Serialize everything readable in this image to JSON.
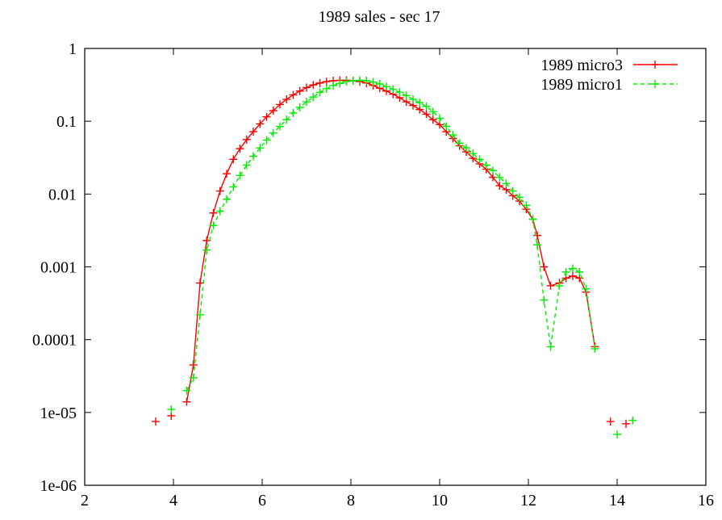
{
  "chart_data": {
    "type": "line",
    "title": "1989 sales - sec 17",
    "xlabel": "",
    "ylabel": "",
    "xlim": [
      2,
      16
    ],
    "ylim": [
      1e-06,
      1
    ],
    "yscale": "log",
    "grid": false,
    "legend_position": "top-right",
    "x_ticks": [
      2,
      4,
      6,
      8,
      10,
      12,
      14,
      16
    ],
    "x_tick_labels": [
      "2",
      "4",
      "6",
      "8",
      "10",
      "12",
      "14",
      "16"
    ],
    "y_ticks": [
      1,
      0.1,
      0.01,
      0.001,
      0.0001,
      1e-05,
      1e-06
    ],
    "y_tick_labels": [
      "1",
      "0.1",
      "0.01",
      "0.001",
      "0.0001",
      "1e-05",
      "1e-06"
    ],
    "series": [
      {
        "name": "1989 micro3",
        "color": "#ff0000",
        "line_style": "solid",
        "marker": "+",
        "x": [
          4.3,
          4.45,
          4.6,
          4.75,
          4.9,
          5.05,
          5.2,
          5.35,
          5.5,
          5.65,
          5.8,
          5.95,
          6.1,
          6.25,
          6.4,
          6.55,
          6.7,
          6.85,
          7.0,
          7.15,
          7.3,
          7.45,
          7.6,
          7.75,
          7.9,
          8.05,
          8.2,
          8.35,
          8.5,
          8.65,
          8.8,
          8.95,
          9.1,
          9.25,
          9.4,
          9.55,
          9.7,
          9.85,
          10.0,
          10.15,
          10.3,
          10.45,
          10.6,
          10.75,
          10.9,
          11.05,
          11.2,
          11.35,
          11.5,
          11.65,
          11.8,
          11.95,
          12.1,
          12.2,
          12.35,
          12.5,
          12.7,
          12.85,
          13.0,
          13.15,
          13.3,
          13.5
        ],
        "y": [
          1.4e-05,
          4.5e-05,
          0.0006,
          0.0023,
          0.0055,
          0.011,
          0.019,
          0.03,
          0.042,
          0.056,
          0.072,
          0.092,
          0.115,
          0.14,
          0.17,
          0.2,
          0.23,
          0.26,
          0.29,
          0.315,
          0.335,
          0.35,
          0.36,
          0.365,
          0.365,
          0.36,
          0.35,
          0.335,
          0.31,
          0.285,
          0.26,
          0.235,
          0.21,
          0.185,
          0.165,
          0.145,
          0.125,
          0.105,
          0.09,
          0.072,
          0.058,
          0.046,
          0.038,
          0.031,
          0.026,
          0.022,
          0.017,
          0.013,
          0.0115,
          0.0095,
          0.008,
          0.0062,
          0.0045,
          0.0027,
          0.001,
          0.00055,
          0.0006,
          0.0007,
          0.00075,
          0.0007,
          0.00045,
          8e-05
        ],
        "isolated_points": {
          "x": [
            3.6,
            3.95,
            13.85,
            14.2
          ],
          "y": [
            7.5e-06,
            9e-06,
            7.5e-06,
            7e-06
          ]
        }
      },
      {
        "name": "1989 micro1",
        "color": "#00ee00",
        "line_style": "dashed",
        "marker": "+",
        "x": [
          4.3,
          4.45,
          4.6,
          4.75,
          4.9,
          5.05,
          5.2,
          5.35,
          5.5,
          5.65,
          5.8,
          5.95,
          6.1,
          6.25,
          6.4,
          6.55,
          6.7,
          6.85,
          7.0,
          7.15,
          7.3,
          7.45,
          7.6,
          7.75,
          7.9,
          8.05,
          8.2,
          8.35,
          8.5,
          8.65,
          8.8,
          8.95,
          9.1,
          9.25,
          9.4,
          9.55,
          9.7,
          9.85,
          10.0,
          10.15,
          10.3,
          10.45,
          10.6,
          10.75,
          10.9,
          11.05,
          11.2,
          11.35,
          11.5,
          11.65,
          11.8,
          11.95,
          12.1,
          12.2,
          12.35,
          12.5,
          12.7,
          12.85,
          13.0,
          13.15,
          13.3,
          13.5
        ],
        "y": [
          2e-05,
          3e-05,
          0.00022,
          0.0017,
          0.0037,
          0.0058,
          0.0085,
          0.0125,
          0.018,
          0.025,
          0.033,
          0.043,
          0.055,
          0.069,
          0.085,
          0.105,
          0.13,
          0.155,
          0.185,
          0.215,
          0.25,
          0.28,
          0.31,
          0.33,
          0.35,
          0.36,
          0.365,
          0.36,
          0.345,
          0.325,
          0.3,
          0.275,
          0.25,
          0.225,
          0.2,
          0.18,
          0.16,
          0.135,
          0.11,
          0.085,
          0.065,
          0.05,
          0.043,
          0.036,
          0.03,
          0.025,
          0.021,
          0.017,
          0.014,
          0.011,
          0.009,
          0.007,
          0.0045,
          0.002,
          0.00035,
          8e-05,
          0.00055,
          0.00085,
          0.00095,
          0.00085,
          0.0005,
          7.5e-05
        ],
        "isolated_points": {
          "x": [
            3.95,
            14.0,
            14.35
          ],
          "y": [
            1.1e-05,
            5e-06,
            7.8e-06
          ]
        }
      }
    ]
  }
}
